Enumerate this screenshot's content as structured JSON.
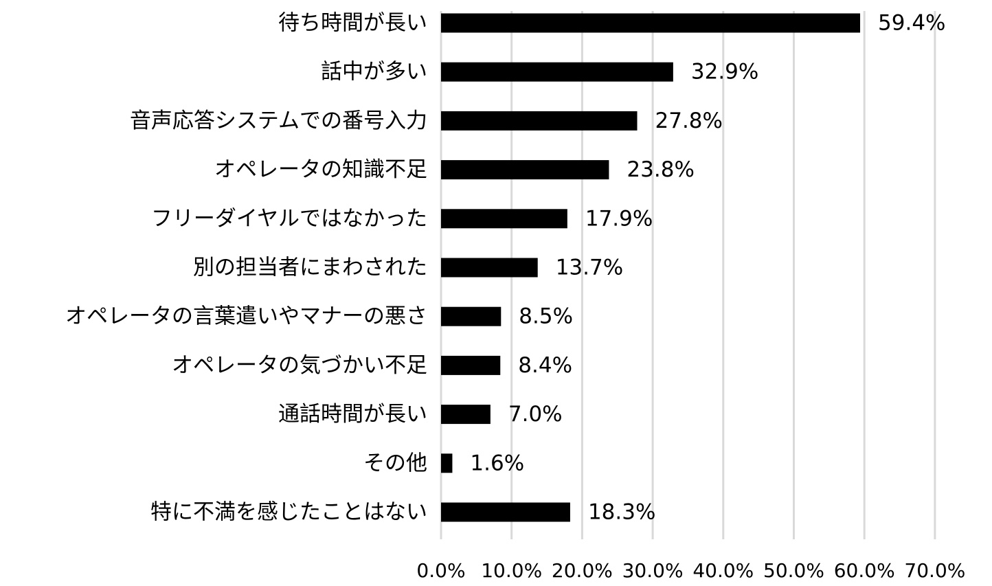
{
  "chart_data": {
    "type": "bar",
    "orientation": "horizontal",
    "categories": [
      "待ち時間が長い",
      "話中が多い",
      "音声応答システムでの番号入力",
      "オペレータの知識不足",
      "フリーダイヤルではなかった",
      "別の担当者にまわされた",
      "オペレータの言葉遣いやマナーの悪さ",
      "オペレータの気づかい不足",
      "通話時間が長い",
      "その他",
      "特に不満を感じたことはない"
    ],
    "values": [
      59.4,
      32.9,
      27.8,
      23.8,
      17.9,
      13.7,
      8.5,
      8.4,
      7.0,
      1.6,
      18.3
    ],
    "value_labels": [
      "59.4%",
      "32.9%",
      "27.8%",
      "23.8%",
      "17.9%",
      "13.7%",
      "8.5%",
      "8.4%",
      "7.0%",
      "1.6%",
      "18.3%"
    ],
    "xlim": [
      0,
      70
    ],
    "ticks": [
      0,
      10,
      20,
      30,
      40,
      50,
      60,
      70
    ],
    "tick_labels": [
      "0.0%",
      "10.0%",
      "20.0%",
      "30.0%",
      "40.0%",
      "50.0%",
      "60.0%",
      "70.0%"
    ],
    "title": "",
    "xlabel": "",
    "ylabel": "",
    "grid": true,
    "legend": "none",
    "colors": {
      "bar": "#000000",
      "grid": "#d9d9d9",
      "text": "#000000"
    }
  }
}
